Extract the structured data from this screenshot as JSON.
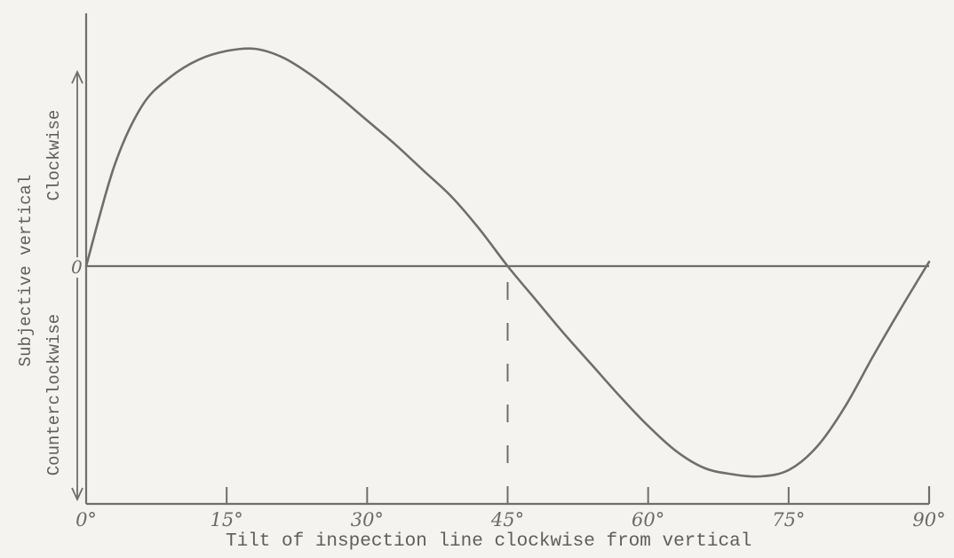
{
  "chart_data": {
    "type": "line",
    "xlabel": "Tilt of inspection line clockwise from vertical",
    "ylabel": "Subjective vertical",
    "y_direction_labels": {
      "positive": "Clockwise",
      "negative": "Counterclockwise"
    },
    "zero_label": "0",
    "x_ticks": [
      {
        "value": 0,
        "label": "0°"
      },
      {
        "value": 15,
        "label": "15°"
      },
      {
        "value": 30,
        "label": "30°"
      },
      {
        "value": 45,
        "label": "45°"
      },
      {
        "value": 60,
        "label": "60°"
      },
      {
        "value": 75,
        "label": "75°"
      },
      {
        "value": 90,
        "label": "90°"
      }
    ],
    "xlim": [
      0,
      90
    ],
    "ylim": [
      -1,
      1
    ],
    "y_tick_labels_shown": false,
    "grid": false,
    "reference_line": {
      "x": 45,
      "style": "dashed"
    },
    "series": [
      {
        "x": [
          0,
          3,
          6,
          9,
          12,
          15,
          18,
          21,
          24,
          27,
          30,
          33,
          36,
          39,
          42,
          45,
          48,
          51,
          54,
          57,
          60,
          63,
          66,
          69,
          72,
          75,
          78,
          81,
          84,
          87,
          90
        ],
        "y": [
          0,
          0.46,
          0.74,
          0.87,
          0.95,
          0.99,
          1.0,
          0.96,
          0.88,
          0.78,
          0.67,
          0.56,
          0.44,
          0.32,
          0.17,
          0.0,
          -0.16,
          -0.32,
          -0.47,
          -0.62,
          -0.76,
          -0.88,
          -0.96,
          -0.99,
          -1.0,
          -0.97,
          -0.86,
          -0.67,
          -0.43,
          -0.2,
          0.02
        ]
      }
    ],
    "colors": {
      "background": "#f4f3ef",
      "ink": "#6e6e6e"
    }
  }
}
